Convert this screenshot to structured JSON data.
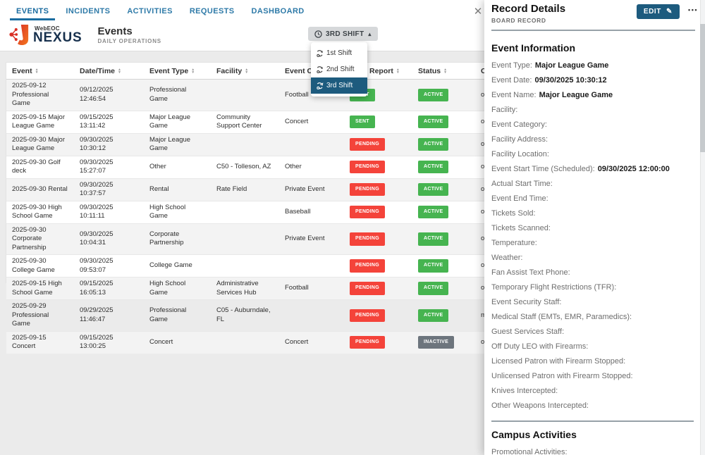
{
  "nav": {
    "tabs": [
      {
        "label": "EVENTS",
        "state": "active"
      },
      {
        "label": "INCIDENTS",
        "state": ""
      },
      {
        "label": "ACTIVITIES",
        "state": ""
      },
      {
        "label": "REQUESTS",
        "state": ""
      },
      {
        "label": "DASHBOARD",
        "state": ""
      }
    ]
  },
  "brand": {
    "top": "WebEOC",
    "name": "NEXUS"
  },
  "page": {
    "title": "Events",
    "subtitle": "DAILY OPERATIONS"
  },
  "shift": {
    "button_label": "3RD SHIFT",
    "options": [
      {
        "label": "1st Shift",
        "state": ""
      },
      {
        "label": "2nd Shift",
        "state": ""
      },
      {
        "label": "3rd Shift",
        "state": "selected"
      }
    ]
  },
  "icons": {
    "caret_up": "▴",
    "close": "✕",
    "pencil": "✎",
    "dots": "•••"
  },
  "table": {
    "columns": [
      "Event",
      "Date/Time",
      "Event Type",
      "Facility",
      "Event Category",
      "Daily Report",
      "Status",
      "Created By"
    ],
    "rows": [
      {
        "event": "2025-09-12 Professional Game",
        "datetime": "09/12/2025 12:46:54",
        "type": "Professional Game",
        "facility": "",
        "category": "Football",
        "report": "SENT",
        "report_color": "green",
        "status": "ACTIVE",
        "status_color": "green",
        "created": "osc"
      },
      {
        "event": "2025-09-15 Major League Game",
        "datetime": "09/15/2025 13:11:42",
        "type": "Major League Game",
        "facility": "Community Support Center",
        "category": "Concert",
        "report": "SENT",
        "report_color": "green",
        "status": "ACTIVE",
        "status_color": "green",
        "created": "osc"
      },
      {
        "event": "2025-09-30 Major League Game",
        "datetime": "09/30/2025 10:30:12",
        "type": "Major League Game",
        "facility": "",
        "category": "",
        "report": "PENDING",
        "report_color": "red",
        "status": "ACTIVE",
        "status_color": "green",
        "created": "osc"
      },
      {
        "event": "2025-09-30 Golf deck",
        "datetime": "09/30/2025 15:27:07",
        "type": "Other",
        "facility": "C50 - Tolleson, AZ",
        "category": "Other",
        "report": "PENDING",
        "report_color": "red",
        "status": "ACTIVE",
        "status_color": "green",
        "created": "osc"
      },
      {
        "event": "2025-09-30 Rental",
        "datetime": "09/30/2025 10:37:57",
        "type": "Rental",
        "facility": "Rate Field",
        "category": "Private Event",
        "report": "PENDING",
        "report_color": "red",
        "status": "ACTIVE",
        "status_color": "green",
        "created": "osc"
      },
      {
        "event": "2025-09-30 High School Game",
        "datetime": "09/30/2025 10:11:11",
        "type": "High School Game",
        "facility": "",
        "category": "Baseball",
        "report": "PENDING",
        "report_color": "red",
        "status": "ACTIVE",
        "status_color": "green",
        "created": "osc"
      },
      {
        "event": "2025-09-30 Corporate Partnership",
        "datetime": "09/30/2025 10:04:31",
        "type": "Corporate Partnership",
        "facility": "",
        "category": "Private Event",
        "report": "PENDING",
        "report_color": "red",
        "status": "ACTIVE",
        "status_color": "green",
        "created": "osc"
      },
      {
        "event": "2025-09-30 College Game",
        "datetime": "09/30/2025 09:53:07",
        "type": "College Game",
        "facility": "",
        "category": "",
        "report": "PENDING",
        "report_color": "red",
        "status": "ACTIVE",
        "status_color": "green",
        "created": "osc"
      },
      {
        "event": "2025-09-15 High School Game",
        "datetime": "09/15/2025 16:05:13",
        "type": "High School Game",
        "facility": "Administrative Services Hub",
        "category": "Football",
        "report": "PENDING",
        "report_color": "red",
        "status": "ACTIVE",
        "status_color": "green",
        "created": "osc"
      },
      {
        "event": "2025-09-29 Professional Game",
        "datetime": "09/29/2025 11:46:47",
        "type": "Professional Game",
        "facility": "C05 - Auburndale, FL",
        "category": "",
        "report": "PENDING",
        "report_color": "red",
        "status": "ACTIVE",
        "status_color": "green",
        "created": "mat"
      },
      {
        "event": "2025-09-15 Concert",
        "datetime": "09/15/2025 13:00:25",
        "type": "Concert",
        "facility": "",
        "category": "Concert",
        "report": "PENDING",
        "report_color": "red",
        "status": "INACTIVE",
        "status_color": "gray",
        "created": "osc"
      }
    ]
  },
  "panel": {
    "title": "Record Details",
    "subtitle": "BOARD RECORD",
    "edit_label": "EDIT",
    "sections": [
      {
        "heading": "Event Information",
        "fields": [
          {
            "label": "Event Type:",
            "value": "Major League Game"
          },
          {
            "label": "Event Date:",
            "value": "09/30/2025 10:30:12"
          },
          {
            "label": "Event Name:",
            "value": "Major League Game"
          },
          {
            "label": "Facility:",
            "value": ""
          },
          {
            "label": "Event Category:",
            "value": ""
          },
          {
            "label": "Facility Address:",
            "value": ""
          },
          {
            "label": "Facility Location:",
            "value": ""
          },
          {
            "label": "Event Start Time (Scheduled):",
            "value": "09/30/2025 12:00:00"
          },
          {
            "label": "Actual Start Time:",
            "value": ""
          },
          {
            "label": "Event End Time:",
            "value": ""
          },
          {
            "label": "Tickets Sold:",
            "value": ""
          },
          {
            "label": "Tickets Scanned:",
            "value": ""
          },
          {
            "label": "Temperature:",
            "value": ""
          },
          {
            "label": "Weather:",
            "value": ""
          },
          {
            "label": "Fan Assist Text Phone:",
            "value": ""
          },
          {
            "label": "Temporary Flight Restrictions (TFR):",
            "value": ""
          },
          {
            "label": "Event Security Staff:",
            "value": ""
          },
          {
            "label": "Medical Staff (EMTs, EMR, Paramedics):",
            "value": ""
          },
          {
            "label": "Guest Services Staff:",
            "value": ""
          },
          {
            "label": "Off Duty LEO with Firearms:",
            "value": ""
          },
          {
            "label": "Licensed Patron with Firearm Stopped:",
            "value": ""
          },
          {
            "label": "Unlicensed Patron with Firearm Stopped:",
            "value": ""
          },
          {
            "label": "Knives Intercepted:",
            "value": ""
          },
          {
            "label": "Other Weapons Intercepted:",
            "value": ""
          }
        ]
      },
      {
        "heading": "Campus Activities",
        "fields": [
          {
            "label": "Promotional Activities:",
            "value": ""
          }
        ]
      }
    ]
  }
}
